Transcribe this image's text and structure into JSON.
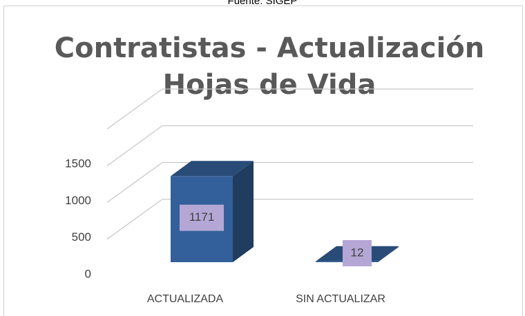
{
  "source": "Fuente: SIGEP",
  "chart_data": {
    "type": "bar3d",
    "title": [
      "Contratistas - Actualización",
      "Hojas de Vida"
    ],
    "categories": [
      "ACTUALIZADA",
      "SIN ACTUALIZAR"
    ],
    "values": [
      1171,
      12
    ],
    "color": "#33609a",
    "ylim": [
      0,
      2000
    ],
    "yticks": [
      0,
      500,
      1000,
      1500
    ],
    "grid": true
  }
}
